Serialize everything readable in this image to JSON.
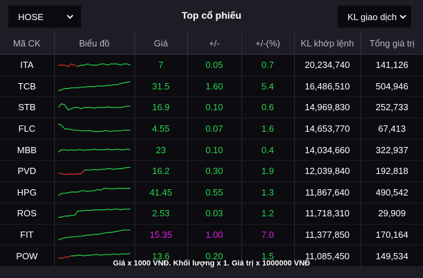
{
  "header": {
    "exchange_select": "HOSE",
    "title": "Top cổ phiếu",
    "metric_select": "KL giao dịch"
  },
  "columns": [
    "Mã CK",
    "Biểu đồ",
    "Giá",
    "+/-",
    "+/-(%)",
    "KL khớp lệnh",
    "Tổng giá trị"
  ],
  "colors": {
    "up": "#27d34b",
    "down": "#e03030",
    "ceiling": "#e020e6",
    "background": "#1e1d26",
    "row": "#0c0c10"
  },
  "rows": [
    {
      "symbol": "ITA",
      "price": "7",
      "change": "0.05",
      "pct": "0.7",
      "volume": "20,234,740",
      "value": "141,126",
      "status": "up",
      "spark": [
        0.5,
        0.5,
        0.5,
        0.4,
        0.6,
        0.5,
        0.4,
        0.5,
        0.5,
        0.6,
        0.5,
        0.5,
        0.5,
        0.6,
        0.6,
        0.5,
        0.6,
        0.6,
        0.6,
        0.5,
        0.6,
        0.6,
        0.5
      ],
      "spark_down_until": 6
    },
    {
      "symbol": "TCB",
      "price": "31.5",
      "change": "1.60",
      "pct": "5.4",
      "volume": "16,486,510",
      "value": "504,946",
      "status": "up",
      "spark": [
        0.1,
        0.2,
        0.3,
        0.3,
        0.35,
        0.35,
        0.35,
        0.4,
        0.4,
        0.45,
        0.45,
        0.45,
        0.5,
        0.5,
        0.5,
        0.55,
        0.55,
        0.6,
        0.6,
        0.7,
        0.75,
        0.8,
        0.85
      ],
      "spark_down_until": 0
    },
    {
      "symbol": "STB",
      "price": "16.9",
      "change": "0.10",
      "pct": "0.6",
      "volume": "14,969,830",
      "value": "252,733",
      "status": "up",
      "spark": [
        0.5,
        0.8,
        0.7,
        0.3,
        0.4,
        0.5,
        0.5,
        0.4,
        0.5,
        0.5,
        0.5,
        0.45,
        0.5,
        0.5,
        0.5,
        0.55,
        0.5,
        0.5,
        0.5,
        0.5,
        0.55,
        0.6,
        0.6
      ],
      "spark_down_until": 0
    },
    {
      "symbol": "FLC",
      "price": "4.55",
      "change": "0.07",
      "pct": "1.6",
      "volume": "14,653,770",
      "value": "67,413",
      "status": "up",
      "spark": [
        0.9,
        0.8,
        0.5,
        0.5,
        0.45,
        0.4,
        0.4,
        0.35,
        0.35,
        0.35,
        0.35,
        0.3,
        0.3,
        0.3,
        0.35,
        0.35,
        0.3,
        0.35,
        0.35,
        0.35,
        0.4,
        0.4,
        0.4
      ],
      "spark_down_until": 0
    },
    {
      "symbol": "MBB",
      "price": "23",
      "change": "0.10",
      "pct": "0.4",
      "volume": "14,034,660",
      "value": "322,937",
      "status": "up",
      "spark": [
        0.3,
        0.5,
        0.5,
        0.45,
        0.5,
        0.45,
        0.5,
        0.5,
        0.45,
        0.5,
        0.5,
        0.55,
        0.5,
        0.5,
        0.5,
        0.55,
        0.5,
        0.5,
        0.55,
        0.5,
        0.5,
        0.55,
        0.5
      ],
      "spark_down_until": 0
    },
    {
      "symbol": "PVD",
      "price": "16.2",
      "change": "0.30",
      "pct": "1.9",
      "volume": "12,039,840",
      "value": "192,818",
      "status": "up",
      "spark": [
        0.35,
        0.3,
        0.25,
        0.25,
        0.3,
        0.25,
        0.3,
        0.3,
        0.6,
        0.6,
        0.6,
        0.65,
        0.6,
        0.65,
        0.65,
        0.7,
        0.7,
        0.65,
        0.7,
        0.7,
        0.75,
        0.8,
        0.8
      ],
      "spark_down_until": 8
    },
    {
      "symbol": "HPG",
      "price": "41.45",
      "change": "0.55",
      "pct": "1.3",
      "volume": "11,867,640",
      "value": "490,542",
      "status": "up",
      "spark": [
        0.2,
        0.4,
        0.4,
        0.45,
        0.5,
        0.5,
        0.5,
        0.6,
        0.6,
        0.55,
        0.6,
        0.6,
        0.7,
        0.65,
        0.8,
        0.8,
        0.75,
        0.75,
        0.8,
        0.8,
        0.8,
        0.8,
        0.8
      ],
      "spark_down_until": 0
    },
    {
      "symbol": "ROS",
      "price": "2.53",
      "change": "0.03",
      "pct": "1.2",
      "volume": "11,718,310",
      "value": "29,909",
      "status": "up",
      "spark": [
        0.2,
        0.2,
        0.3,
        0.3,
        0.35,
        0.35,
        0.7,
        0.7,
        0.75,
        0.75,
        0.75,
        0.8,
        0.8,
        0.8,
        0.8,
        0.85,
        0.8,
        0.85,
        0.85,
        0.8,
        0.85,
        0.85,
        0.85
      ],
      "spark_down_until": 0
    },
    {
      "symbol": "FIT",
      "price": "15.35",
      "change": "1.00",
      "pct": "7.0",
      "volume": "11,377,850",
      "value": "170,164",
      "status": "ceiling",
      "spark": [
        0.1,
        0.2,
        0.3,
        0.3,
        0.35,
        0.35,
        0.4,
        0.4,
        0.45,
        0.5,
        0.5,
        0.55,
        0.55,
        0.6,
        0.65,
        0.7,
        0.7,
        0.75,
        0.8,
        0.85,
        0.9,
        0.9,
        0.9
      ],
      "spark_down_until": 0
    },
    {
      "symbol": "POW",
      "price": "13.6",
      "change": "0.20",
      "pct": "1.5",
      "volume": "11,085,450",
      "value": "149,534",
      "status": "up",
      "spark": [
        0.35,
        0.3,
        0.4,
        0.4,
        0.5,
        0.5,
        0.55,
        0.55,
        0.5,
        0.55,
        0.55,
        0.6,
        0.6,
        0.55,
        0.6,
        0.6,
        0.6,
        0.65,
        0.6,
        0.65,
        0.65,
        0.65,
        0.7
      ],
      "spark_down_until": 4
    }
  ],
  "footer": {
    "note": "Giá x 1000 VNĐ. Khối lượng x 1. Giá trị x 1000000 VNĐ"
  }
}
